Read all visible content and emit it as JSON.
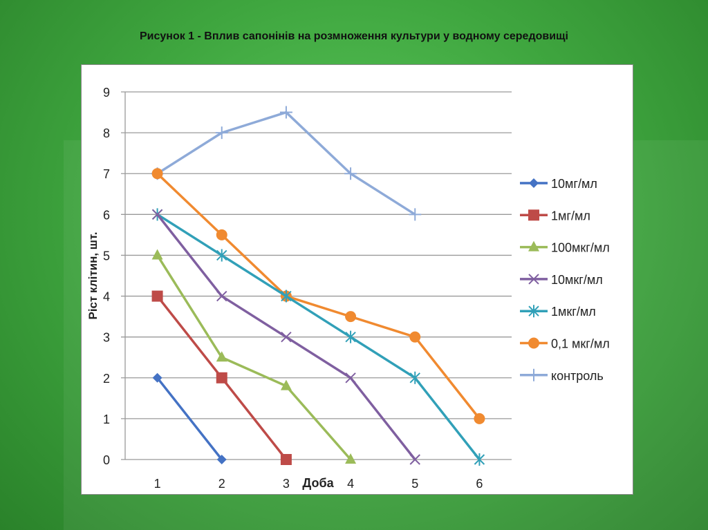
{
  "title": "Рисунок 1 - Вплив сапонінів на розмноження культури у водному середовищі",
  "chart_data": {
    "type": "line",
    "title": "Рисунок 1 - Вплив сапонінів на розмноження культури у водному середовищі",
    "xlabel": "Доба",
    "ylabel": "Ріст клітин, шт.",
    "categories": [
      "1",
      "2",
      "3",
      "4",
      "5",
      "6"
    ],
    "ylim": [
      0,
      9
    ],
    "yticks": [
      "0",
      "1",
      "2",
      "3",
      "4",
      "5",
      "6",
      "7",
      "8",
      "9"
    ],
    "grid": true,
    "legend": "right",
    "series": [
      {
        "name": "10мг/мл",
        "color": "#4472c4",
        "marker": "diamond",
        "values": [
          2,
          0,
          null,
          null,
          null,
          null
        ]
      },
      {
        "name": "1мг/мл",
        "color": "#be4b48",
        "marker": "square",
        "values": [
          4,
          2,
          0,
          null,
          null,
          null
        ]
      },
      {
        "name": "100мкг/мл",
        "color": "#9bbb59",
        "marker": "triangle",
        "values": [
          5,
          2.5,
          1.8,
          0,
          null,
          null
        ]
      },
      {
        "name": "10мкг/мл",
        "color": "#7f5fa0",
        "marker": "x",
        "values": [
          6,
          4,
          3,
          2,
          0,
          null
        ]
      },
      {
        "name": "1мкг/мл",
        "color": "#31a0b8",
        "marker": "star",
        "values": [
          6,
          5,
          4,
          3,
          2,
          0
        ]
      },
      {
        "name": "0,1 мкг/мл",
        "color": "#f08a30",
        "marker": "circle",
        "values": [
          7,
          5.5,
          4,
          3.5,
          3,
          1
        ]
      },
      {
        "name": "контроль",
        "color": "#8eaad8",
        "marker": "plus",
        "values": [
          7,
          8,
          8.5,
          7,
          6,
          null
        ]
      }
    ]
  }
}
